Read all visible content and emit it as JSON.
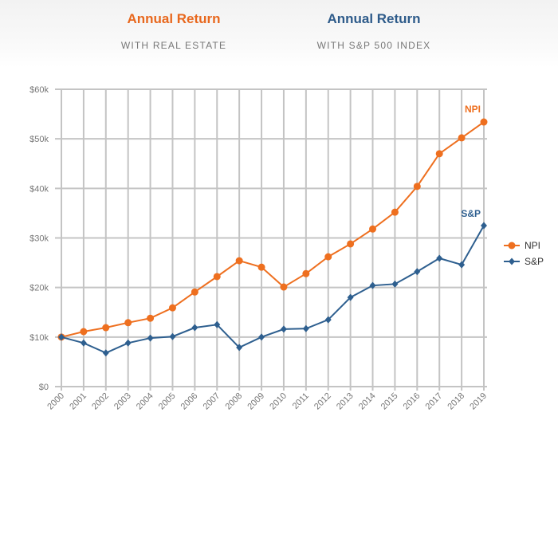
{
  "header": {
    "left": {
      "title": "Annual Return",
      "subtitle": "WITH REAL ESTATE",
      "color": "#e8681e"
    },
    "right": {
      "title": "Annual Return",
      "subtitle": "WITH S&P 500 INDEX",
      "color": "#2e5b8a"
    }
  },
  "chart_data": {
    "type": "line",
    "x": [
      "2000",
      "2001",
      "2002",
      "2003",
      "2004",
      "2005",
      "2006",
      "2007",
      "2008",
      "2009",
      "2010",
      "2011",
      "2012",
      "2013",
      "2014",
      "2015",
      "2016",
      "2017",
      "2018",
      "2019"
    ],
    "yticks": [
      "$0",
      "$10k",
      "$20k",
      "$30k",
      "$40k",
      "$50k",
      "$60k"
    ],
    "ylim": [
      0,
      60000
    ],
    "grid": true,
    "legend_placement": "right",
    "series": [
      {
        "name": "NPI",
        "color": "#ee6f1f",
        "marker": "circle",
        "values": [
          10000,
          11100,
          11900,
          12900,
          13800,
          15900,
          19100,
          22200,
          25400,
          24100,
          20100,
          22800,
          26200,
          28800,
          31800,
          35200,
          40400,
          47000,
          50200,
          53400
        ]
      },
      {
        "name": "S&P",
        "color": "#2e5f8f",
        "marker": "diamond",
        "values": [
          10000,
          8800,
          6800,
          8800,
          9800,
          10100,
          11900,
          12500,
          7900,
          10000,
          11600,
          11700,
          13500,
          18000,
          20400,
          20700,
          23200,
          25900,
          24600,
          32500
        ]
      }
    ]
  }
}
